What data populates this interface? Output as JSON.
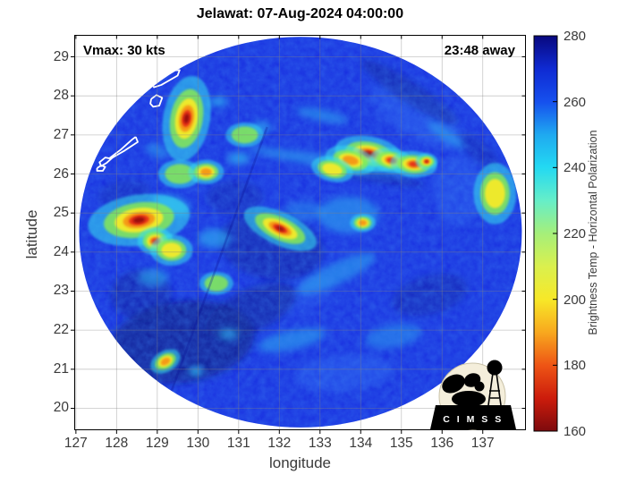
{
  "title": "Jelawat: 07-Aug-2024 04:00:00",
  "annotations": {
    "vmax": "Vmax: 30 kts",
    "eta": "23:48 away"
  },
  "axes": {
    "xlabel": "longitude",
    "ylabel": "latitude",
    "x_ticks": [
      127,
      128,
      129,
      130,
      131,
      132,
      133,
      134,
      135,
      136,
      137
    ],
    "y_ticks": [
      20,
      21,
      22,
      23,
      24,
      25,
      26,
      27,
      28,
      29
    ]
  },
  "colorbar": {
    "label": "Brightness Temp - Horizontal Polarization",
    "ticks": [
      280,
      260,
      240,
      220,
      200,
      180,
      160
    ],
    "range": [
      160,
      280
    ],
    "stops": [
      {
        "p": 0,
        "c": "#08087e"
      },
      {
        "p": 0.083,
        "c": "#0f2ad2"
      },
      {
        "p": 0.167,
        "c": "#1650ee"
      },
      {
        "p": 0.25,
        "c": "#1fa9f0"
      },
      {
        "p": 0.333,
        "c": "#23d9f2"
      },
      {
        "p": 0.417,
        "c": "#66eec8"
      },
      {
        "p": 0.5,
        "c": "#a5ef7a"
      },
      {
        "p": 0.583,
        "c": "#daf04e"
      },
      {
        "p": 0.667,
        "c": "#f7e828"
      },
      {
        "p": 0.75,
        "c": "#f8a81e"
      },
      {
        "p": 0.833,
        "c": "#ee5515"
      },
      {
        "p": 0.917,
        "c": "#cc1c0c"
      },
      {
        "p": 1,
        "c": "#7d0a0d"
      }
    ]
  },
  "logo": {
    "text": "C I M S S"
  },
  "chart_data": {
    "type": "heatmap",
    "title": "Jelawat: 07-Aug-2024 04:00:00",
    "xlabel": "longitude",
    "ylabel": "latitude",
    "x_range": [
      126.97,
      138.05
    ],
    "y_range": [
      19.45,
      29.55
    ],
    "grid": true,
    "colorbar_label": "Brightness Temp - Horizontal Polarization",
    "colorbar_range": [
      160,
      280
    ],
    "storm": {
      "name": "Jelawat",
      "datetime": "07-Aug-2024 04:00:00",
      "vmax_kts": 30,
      "overpass_offset": "23:48 away"
    },
    "swath": {
      "center_lon": 132.52,
      "center_lat": 24.51,
      "rx_deg": 5.44,
      "ry_deg": 5.0,
      "background_tb_k": 258
    },
    "palette": {
      "base": "#1629df",
      "lite": "#2e66f2",
      "cyan": "#2bc8f0",
      "dark": "#071386",
      "cell_levels": [
        "#39e0ee",
        "#8cec4c",
        "#f4ea2a",
        "#f59a16",
        "#e53317",
        "#9c0f10"
      ],
      "coastline": "#ffffff"
    },
    "features": [
      {
        "kind": "lite",
        "lon": 135.4,
        "lat": 27.5,
        "w": 2.6,
        "h": 1.1,
        "rot": 30,
        "o": 0.45
      },
      {
        "kind": "lite",
        "lon": 136.4,
        "lat": 25.6,
        "w": 1.2,
        "h": 1.8,
        "rot": 0,
        "o": 0.4
      },
      {
        "kind": "lite",
        "lon": 133.6,
        "lat": 20.9,
        "w": 2.4,
        "h": 0.9,
        "rot": -5,
        "o": 0.45
      },
      {
        "kind": "lite",
        "lon": 132.6,
        "lat": 22.9,
        "w": 1.6,
        "h": 0.8,
        "rot": -20,
        "o": 0.3
      },
      {
        "kind": "dark",
        "lon": 129.6,
        "lat": 21.7,
        "w": 3.6,
        "h": 2.1,
        "rot": -8,
        "o": 0.85
      },
      {
        "kind": "dark",
        "lon": 131.3,
        "lat": 22.5,
        "w": 2.4,
        "h": 1.1,
        "rot": -25,
        "o": 0.6
      },
      {
        "kind": "dark",
        "lon": 128.6,
        "lat": 22.9,
        "w": 1.5,
        "h": 1.3,
        "rot": 0,
        "o": 0.5
      },
      {
        "kind": "dark",
        "lon": 131.8,
        "lat": 24.15,
        "w": 2.6,
        "h": 1.7,
        "rot": 10,
        "o": 0.5
      },
      {
        "kind": "dark",
        "lon": 130.9,
        "lat": 25.4,
        "w": 1.4,
        "h": 0.9,
        "rot": 0,
        "o": 0.35
      },
      {
        "kind": "dark",
        "lon": 135.2,
        "lat": 28.1,
        "w": 2.8,
        "h": 0.55,
        "rot": 33,
        "o": 0.5
      },
      {
        "kind": "dark",
        "lon": 134.3,
        "lat": 25.95,
        "w": 2.6,
        "h": 0.3,
        "rot": 10,
        "o": 0.45
      },
      {
        "kind": "dark",
        "lon": 135.7,
        "lat": 22.9,
        "w": 1.9,
        "h": 1.0,
        "rot": -15,
        "o": 0.4
      },
      {
        "kind": "dark",
        "lon": 136.9,
        "lat": 26.6,
        "w": 1.2,
        "h": 0.5,
        "rot": 40,
        "o": 0.35
      },
      {
        "kind": "dark",
        "lon": 128.2,
        "lat": 25.5,
        "w": 1.3,
        "h": 0.7,
        "rot": -10,
        "o": 0.3
      },
      {
        "kind": "cyan",
        "lon": 133.3,
        "lat": 26.3,
        "w": 4.2,
        "h": 0.32,
        "rot": 9,
        "o": 0.5
      },
      {
        "kind": "cyan",
        "lon": 133.7,
        "lat": 24.95,
        "w": 1.5,
        "h": 0.95,
        "rot": 0,
        "o": 0.5
      },
      {
        "kind": "cyan",
        "lon": 133.4,
        "lat": 23.45,
        "w": 2.1,
        "h": 0.55,
        "rot": -25,
        "o": 0.5
      },
      {
        "kind": "cyan",
        "lon": 132.3,
        "lat": 21.75,
        "w": 1.7,
        "h": 0.5,
        "rot": -12,
        "o": 0.5
      },
      {
        "kind": "cyan",
        "lon": 129.35,
        "lat": 25.2,
        "w": 0.95,
        "h": 0.5,
        "rot": 15,
        "o": 0.65
      },
      {
        "kind": "cyan",
        "lon": 130.4,
        "lat": 24.35,
        "w": 0.8,
        "h": 0.5,
        "rot": 0,
        "o": 0.6
      },
      {
        "kind": "cyan",
        "lon": 128.9,
        "lat": 23.35,
        "w": 0.75,
        "h": 0.45,
        "rot": 0,
        "o": 0.55
      },
      {
        "kind": "cyan",
        "lon": 131.0,
        "lat": 26.4,
        "w": 0.55,
        "h": 0.3,
        "rot": 0,
        "o": 0.7
      },
      {
        "kind": "cyan",
        "lon": 131.55,
        "lat": 27.2,
        "w": 0.5,
        "h": 0.3,
        "rot": 0,
        "o": 0.6
      },
      {
        "kind": "cyan",
        "lon": 130.5,
        "lat": 27.85,
        "w": 0.45,
        "h": 0.25,
        "rot": 0,
        "o": 0.7
      },
      {
        "kind": "cyan",
        "lon": 133.05,
        "lat": 27.5,
        "w": 1.3,
        "h": 0.3,
        "rot": 12,
        "o": 0.5
      },
      {
        "kind": "cyan",
        "lon": 136.1,
        "lat": 27.0,
        "w": 1.1,
        "h": 0.3,
        "rot": 35,
        "o": 0.5
      },
      {
        "kind": "cyan",
        "lon": 134.8,
        "lat": 21.85,
        "w": 1.4,
        "h": 0.6,
        "rot": -10,
        "o": 0.4
      },
      {
        "kind": "cyan",
        "lon": 130.75,
        "lat": 21.9,
        "w": 0.5,
        "h": 0.3,
        "rot": 0,
        "o": 0.6
      },
      {
        "kind": "cyan",
        "lon": 129.95,
        "lat": 20.95,
        "w": 0.35,
        "h": 0.25,
        "rot": 0,
        "o": 0.8
      },
      {
        "kind": "cyan",
        "lon": 132.6,
        "lat": 25.05,
        "w": 1.0,
        "h": 0.5,
        "rot": 0,
        "o": 0.35
      },
      {
        "kind": "cyan",
        "lon": 129.0,
        "lat": 26.6,
        "w": 0.6,
        "h": 0.35,
        "rot": 20,
        "o": 0.45
      },
      {
        "kind": "cell",
        "lon": 128.55,
        "lat": 24.82,
        "w": 1.2,
        "h": 0.62,
        "rot": -8,
        "levels": 6,
        "tb_min_k": 165
      },
      {
        "kind": "cell",
        "lon": 128.95,
        "lat": 24.28,
        "w": 0.42,
        "h": 0.34,
        "rot": 0,
        "levels": 5,
        "tb_min_k": 178
      },
      {
        "kind": "cell",
        "lon": 129.35,
        "lat": 24.05,
        "w": 0.5,
        "h": 0.38,
        "rot": 0,
        "levels": 3,
        "tb_min_k": 205
      },
      {
        "kind": "cell",
        "lon": 129.72,
        "lat": 27.42,
        "w": 0.55,
        "h": 1.05,
        "rot": 10,
        "levels": 6,
        "tb_min_k": 168
      },
      {
        "kind": "cell",
        "lon": 129.55,
        "lat": 26.0,
        "w": 0.5,
        "h": 0.35,
        "rot": 0,
        "levels": 2,
        "tb_min_k": 228
      },
      {
        "kind": "cell",
        "lon": 130.2,
        "lat": 26.05,
        "w": 0.42,
        "h": 0.3,
        "rot": 0,
        "levels": 4,
        "tb_min_k": 195
      },
      {
        "kind": "cell",
        "lon": 132.02,
        "lat": 24.6,
        "w": 0.92,
        "h": 0.4,
        "rot": 25,
        "levels": 6,
        "tb_min_k": 160
      },
      {
        "kind": "cell",
        "lon": 134.2,
        "lat": 26.52,
        "w": 0.8,
        "h": 0.42,
        "rot": 10,
        "levels": 6,
        "tb_min_k": 165
      },
      {
        "kind": "cell",
        "lon": 134.75,
        "lat": 26.35,
        "w": 0.5,
        "h": 0.3,
        "rot": 10,
        "levels": 5,
        "tb_min_k": 180
      },
      {
        "kind": "cell",
        "lon": 135.3,
        "lat": 26.25,
        "w": 0.55,
        "h": 0.32,
        "rot": 5,
        "levels": 5,
        "tb_min_k": 182
      },
      {
        "kind": "cell",
        "lon": 135.62,
        "lat": 26.32,
        "w": 0.26,
        "h": 0.2,
        "rot": 0,
        "levels": 6,
        "tb_min_k": 172
      },
      {
        "kind": "cell",
        "lon": 133.75,
        "lat": 26.35,
        "w": 0.6,
        "h": 0.34,
        "rot": 14,
        "levels": 4,
        "tb_min_k": 198
      },
      {
        "kind": "cell",
        "lon": 133.3,
        "lat": 26.12,
        "w": 0.5,
        "h": 0.3,
        "rot": 14,
        "levels": 3,
        "tb_min_k": 212
      },
      {
        "kind": "cell",
        "lon": 131.15,
        "lat": 27.0,
        "w": 0.45,
        "h": 0.3,
        "rot": 0,
        "levels": 2,
        "tb_min_k": 230
      },
      {
        "kind": "cell",
        "lon": 129.2,
        "lat": 21.2,
        "w": 0.38,
        "h": 0.26,
        "rot": -30,
        "levels": 4,
        "tb_min_k": 200
      },
      {
        "kind": "cell",
        "lon": 134.05,
        "lat": 24.75,
        "w": 0.3,
        "h": 0.22,
        "rot": 0,
        "levels": 4,
        "tb_min_k": 198
      },
      {
        "kind": "cell",
        "lon": 137.3,
        "lat": 25.5,
        "w": 0.5,
        "h": 0.75,
        "rot": 0,
        "levels": 3,
        "tb_min_k": 210
      },
      {
        "kind": "cell",
        "lon": 130.45,
        "lat": 23.2,
        "w": 0.4,
        "h": 0.28,
        "rot": 0,
        "levels": 2,
        "tb_min_k": 232
      }
    ],
    "seam": {
      "from": [
        131.7,
        27.2
      ],
      "to": [
        129.3,
        20.3
      ]
    },
    "coastlines": [
      {
        "name": "island-north",
        "pts": [
          [
            128.82,
            28.38
          ],
          [
            129.0,
            28.62
          ],
          [
            129.55,
            28.66
          ],
          [
            129.5,
            28.52
          ],
          [
            129.1,
            28.28
          ],
          [
            128.92,
            28.22
          ],
          [
            128.82,
            28.38
          ]
        ]
      },
      {
        "name": "island-small",
        "pts": [
          [
            128.85,
            27.92
          ],
          [
            128.98,
            28.02
          ],
          [
            129.12,
            27.95
          ],
          [
            129.05,
            27.75
          ],
          [
            128.9,
            27.72
          ],
          [
            128.83,
            27.8
          ],
          [
            128.85,
            27.92
          ]
        ]
      },
      {
        "name": "okinawa",
        "pts": [
          [
            128.47,
            26.95
          ],
          [
            128.52,
            26.82
          ],
          [
            128.2,
            26.6
          ],
          [
            127.9,
            26.42
          ],
          [
            127.75,
            26.28
          ],
          [
            127.62,
            26.2
          ],
          [
            127.58,
            26.3
          ],
          [
            127.72,
            26.42
          ],
          [
            127.82,
            26.4
          ],
          [
            128.1,
            26.62
          ],
          [
            128.38,
            26.88
          ],
          [
            128.47,
            26.95
          ]
        ]
      },
      {
        "name": "islet",
        "pts": [
          [
            127.52,
            26.15
          ],
          [
            127.62,
            26.22
          ],
          [
            127.72,
            26.18
          ],
          [
            127.66,
            26.08
          ],
          [
            127.52,
            26.08
          ],
          [
            127.52,
            26.15
          ]
        ]
      }
    ]
  }
}
